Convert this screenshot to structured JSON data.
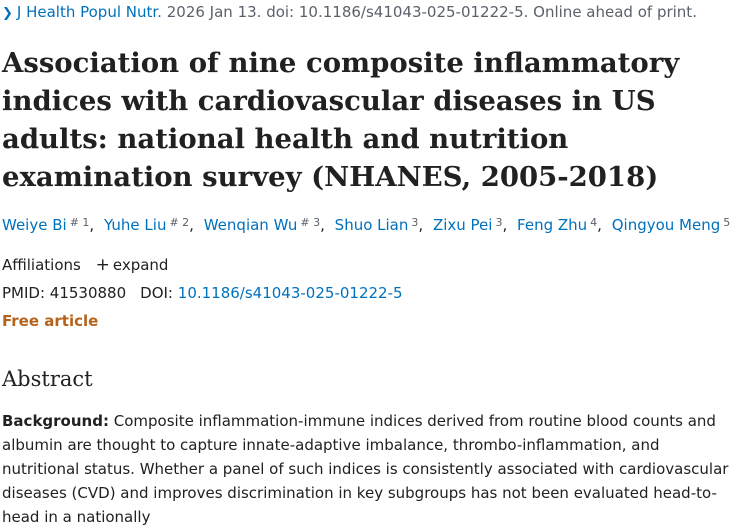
{
  "citation": {
    "journal": "J Health Popul Nutr.",
    "details": "2026 Jan 13. doi: 10.1186/s41043-025-01222-5. Online ahead of print."
  },
  "title": "Association of nine composite inflammatory indices with cardiovascular diseases in US adults: national health and nutrition examination survey (NHANES, 2005-2018)",
  "authors": [
    {
      "name": "Weiye Bi",
      "sup": "# 1"
    },
    {
      "name": "Yuhe Liu",
      "sup": "# 2"
    },
    {
      "name": "Wenqian Wu",
      "sup": "# 3"
    },
    {
      "name": "Shuo Lian",
      "sup": "3"
    },
    {
      "name": "Zixu Pei",
      "sup": "3"
    },
    {
      "name": "Feng Zhu",
      "sup": "4"
    },
    {
      "name": "Qingyou Meng",
      "sup": "5"
    }
  ],
  "affiliations": {
    "label": "Affiliations",
    "expand_label": "expand",
    "expand_icon": "plus-icon"
  },
  "identifiers": {
    "pmid_label": "PMID:",
    "pmid": "41530880",
    "doi_label": "DOI:",
    "doi": "10.1186/s41043-025-01222-5"
  },
  "free_article": "Free article",
  "abstract": {
    "heading": "Abstract",
    "background_label": "Background:",
    "background_text": "Composite inflammation-immune indices derived from routine blood counts and albumin are thought to capture innate-adaptive imbalance, thrombo-inflammation, and nutritional status. Whether a panel of such indices is consistently associated with cardiovascular diseases (CVD) and improves discrimination in key subgroups has not been evaluated head-to-head in a nationally"
  },
  "colors": {
    "link": "#0071bc",
    "free": "#b5631a",
    "text": "#212121",
    "muted": "#5b616b"
  }
}
